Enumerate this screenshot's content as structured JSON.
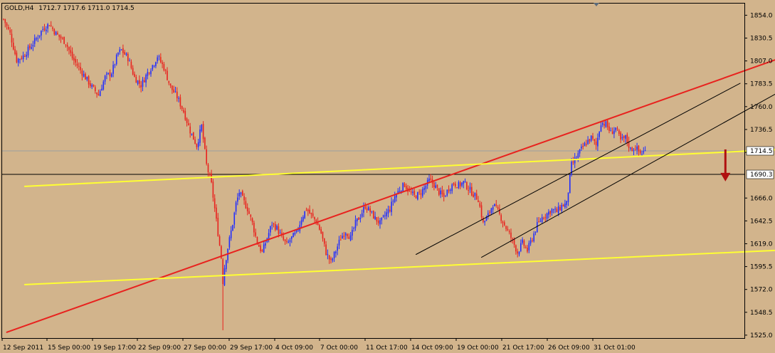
{
  "header": {
    "symbol": "GOLD,H4",
    "ohlc": "1712.7 1717.6 1711.0 1714.5"
  },
  "chart_data": {
    "type": "candlestick",
    "title": "GOLD,H4",
    "ylim": [
      1522.0,
      1866.0
    ],
    "y_ticks": [
      "1854.0",
      "1830.5",
      "1807.0",
      "1783.5",
      "1760.0",
      "1736.5",
      "1713.0",
      "1690.3",
      "1666.0",
      "1642.5",
      "1619.0",
      "1595.5",
      "1572.0",
      "1548.5",
      "1525.0"
    ],
    "x_labels": [
      "12 Sep 2011",
      "15 Sep 00:00",
      "19 Sep 17:00",
      "22 Sep 09:00",
      "27 Sep 00:00",
      "29 Sep 17:00",
      "4 Oct 09:00",
      "7 Oct 00:00",
      "11 Oct 17:00",
      "14 Oct 09:00",
      "19 Oct 00:00",
      "21 Oct 17:00",
      "26 Oct 09:00",
      "31 Oct 01:00"
    ],
    "current_price": {
      "value": 1714.5,
      "label": "1714.5",
      "color": "#ffffff"
    },
    "level_line": {
      "value": 1690.3,
      "label": "1690.3",
      "color": "#ffffff"
    },
    "close_path": [
      [
        0,
        1850
      ],
      [
        4,
        1835
      ],
      [
        8,
        1808
      ],
      [
        12,
        1812
      ],
      [
        18,
        1825
      ],
      [
        24,
        1840
      ],
      [
        28,
        1845
      ],
      [
        32,
        1835
      ],
      [
        38,
        1826
      ],
      [
        42,
        1810
      ],
      [
        48,
        1795
      ],
      [
        54,
        1780
      ],
      [
        58,
        1772
      ],
      [
        62,
        1790
      ],
      [
        66,
        1795
      ],
      [
        70,
        1815
      ],
      [
        72,
        1818
      ],
      [
        76,
        1810
      ],
      [
        80,
        1790
      ],
      [
        84,
        1782
      ],
      [
        88,
        1795
      ],
      [
        92,
        1805
      ],
      [
        94,
        1812
      ],
      [
        98,
        1800
      ],
      [
        102,
        1780
      ],
      [
        106,
        1770
      ],
      [
        110,
        1755
      ],
      [
        114,
        1735
      ],
      [
        118,
        1720
      ],
      [
        121,
        1740
      ],
      [
        124,
        1700
      ],
      [
        127,
        1680
      ],
      [
        129,
        1655
      ],
      [
        131,
        1630
      ],
      [
        133,
        1605
      ],
      [
        134,
        1580
      ],
      [
        135,
        1595
      ],
      [
        137,
        1615
      ],
      [
        140,
        1640
      ],
      [
        142,
        1660
      ],
      [
        144,
        1672
      ],
      [
        146,
        1665
      ],
      [
        149,
        1655
      ],
      [
        152,
        1640
      ],
      [
        155,
        1620
      ],
      [
        158,
        1610
      ],
      [
        161,
        1625
      ],
      [
        164,
        1640
      ],
      [
        167,
        1635
      ],
      [
        170,
        1625
      ],
      [
        173,
        1618
      ],
      [
        176,
        1625
      ],
      [
        179,
        1630
      ],
      [
        182,
        1645
      ],
      [
        185,
        1655
      ],
      [
        188,
        1648
      ],
      [
        191,
        1642
      ],
      [
        194,
        1630
      ],
      [
        197,
        1610
      ],
      [
        200,
        1600
      ],
      [
        203,
        1612
      ],
      [
        206,
        1625
      ],
      [
        209,
        1632
      ],
      [
        212,
        1625
      ],
      [
        215,
        1640
      ],
      [
        218,
        1648
      ],
      [
        221,
        1658
      ],
      [
        224,
        1652
      ],
      [
        227,
        1645
      ],
      [
        230,
        1640
      ],
      [
        233,
        1648
      ],
      [
        236,
        1655
      ],
      [
        239,
        1668
      ],
      [
        242,
        1675
      ],
      [
        245,
        1680
      ],
      [
        248,
        1672
      ],
      [
        251,
        1668
      ],
      [
        254,
        1670
      ],
      [
        257,
        1676
      ],
      [
        260,
        1684
      ],
      [
        263,
        1680
      ],
      [
        266,
        1672
      ],
      [
        269,
        1667
      ],
      [
        272,
        1676
      ],
      [
        275,
        1681
      ],
      [
        278,
        1679
      ],
      [
        281,
        1682
      ],
      [
        284,
        1676
      ],
      [
        287,
        1670
      ],
      [
        290,
        1665
      ],
      [
        293,
        1640
      ],
      [
        296,
        1648
      ],
      [
        299,
        1660
      ],
      [
        302,
        1652
      ],
      [
        305,
        1642
      ],
      [
        308,
        1632
      ],
      [
        311,
        1622
      ],
      [
        314,
        1610
      ],
      [
        317,
        1620
      ],
      [
        320,
        1612
      ],
      [
        323,
        1625
      ],
      [
        326,
        1638
      ],
      [
        329,
        1646
      ],
      [
        332,
        1650
      ],
      [
        335,
        1654
      ],
      [
        338,
        1652
      ],
      [
        341,
        1658
      ],
      [
        344,
        1660
      ],
      [
        347,
        1700
      ],
      [
        350,
        1708
      ],
      [
        353,
        1716
      ],
      [
        356,
        1723
      ],
      [
        359,
        1728
      ],
      [
        362,
        1720
      ],
      [
        365,
        1744
      ],
      [
        368,
        1742
      ],
      [
        371,
        1733
      ],
      [
        374,
        1738
      ],
      [
        377,
        1725
      ],
      [
        380,
        1728
      ],
      [
        383,
        1716
      ],
      [
        386,
        1718
      ],
      [
        389,
        1712
      ],
      [
        392,
        1714
      ]
    ],
    "overlays": [
      {
        "name": "red-trendline",
        "color": "#e8221e",
        "from": [
          2,
          1528
        ],
        "to": [
          478,
          1812
        ]
      },
      {
        "name": "yellow-upper-channel",
        "color": "#ffff33",
        "from": [
          13,
          1678
        ],
        "to": [
          475,
          1716
        ]
      },
      {
        "name": "yellow-lower-channel",
        "color": "#ffff33",
        "from": [
          13,
          1577
        ],
        "to": [
          483,
          1613
        ]
      },
      {
        "name": "black-channel-upper",
        "color": "#000000",
        "from": [
          252,
          1608
        ],
        "to": [
          450,
          1784
        ]
      },
      {
        "name": "black-channel-lower",
        "color": "#000000",
        "from": [
          292,
          1605
        ],
        "to": [
          478,
          1779
        ]
      },
      {
        "name": "horizontal-level",
        "color": "#000000",
        "from": [
          -5,
          1690.3
        ],
        "to": [
          520,
          1690.3
        ]
      },
      {
        "name": "current-price-line",
        "color": "#8a9aa8",
        "from": [
          -5,
          1714.5
        ],
        "to": [
          520,
          1714.5
        ]
      }
    ],
    "arrow": {
      "color": "#b01010",
      "x": 441,
      "from": 1716,
      "to": 1686
    },
    "colors": {
      "bull": "#1e2cff",
      "bear": "#e8221e",
      "background": "#d2b48c"
    }
  }
}
